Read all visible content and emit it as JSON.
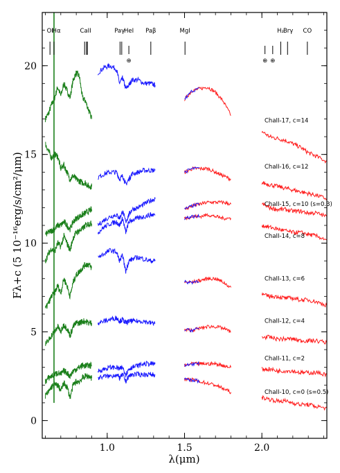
{
  "chart_data": {
    "type": "line",
    "title": "",
    "xlabel": "λ(μm)",
    "ylabel": "Fλ+c (5 10⁻¹⁶erg/s/cm²/μm)",
    "xlim": [
      0.58,
      2.42
    ],
    "ylim": [
      -1.0,
      23.0
    ],
    "x_ticks": [
      1.0,
      1.5,
      2.0
    ],
    "x_tick_labels": [
      "1.0",
      "1.5",
      "2.0"
    ],
    "y_ticks": [
      0,
      5,
      10,
      15,
      20
    ],
    "y_tick_labels": [
      "0",
      "5",
      "10",
      "15",
      "20"
    ],
    "grid": false,
    "band_colors": {
      "optical": "#1a7f1a",
      "nir_short": "#1a1aff",
      "nir_long": "#ff1a1a"
    },
    "line_markers": [
      {
        "label": "OI",
        "x": 0.63,
        "earth": false
      },
      {
        "label": "Hα",
        "x": 0.656,
        "earth": false
      },
      {
        "label": "CaII",
        "x": 0.854,
        "earth": false
      },
      {
        "label": "CaII",
        "x": 0.866,
        "earth": false
      },
      {
        "label": "CaII",
        "x": 0.872,
        "earth": false
      },
      {
        "label": "Paγ",
        "x": 1.094,
        "earth": false
      },
      {
        "label": "HeI",
        "x": 1.083,
        "earth": false
      },
      {
        "label": "Paβ",
        "x": 1.282,
        "earth": false
      },
      {
        "label": "MgI",
        "x": 1.503,
        "earth": false
      },
      {
        "label": "H₂",
        "x": 2.122,
        "earth": false
      },
      {
        "label": "Brγ",
        "x": 2.166,
        "earth": false
      },
      {
        "label": "CO",
        "x": 2.294,
        "earth": false
      },
      {
        "label": "",
        "x": 1.14,
        "earth": true
      },
      {
        "label": "",
        "x": 2.02,
        "earth": true
      },
      {
        "label": "",
        "x": 2.07,
        "earth": true
      }
    ],
    "line_marker_labels": [
      {
        "text": "OI",
        "x": 0.63
      },
      {
        "text": "Hα",
        "x": 0.672
      },
      {
        "text": "CaII",
        "x": 0.86
      },
      {
        "text": "Paγ",
        "x": 1.08
      },
      {
        "text": "HeI",
        "x": 1.14
      },
      {
        "text": "Paβ",
        "x": 1.282
      },
      {
        "text": "MgI",
        "x": 1.503
      },
      {
        "text": "H₂",
        "x": 2.12
      },
      {
        "text": "Brγ",
        "x": 2.17
      },
      {
        "text": "CO",
        "x": 2.294
      }
    ],
    "earth_symbol": "⊕",
    "series": [
      {
        "name": "ChaII-17, c=14",
        "label_y": 16.8,
        "optical_x": [
          0.6,
          0.62,
          0.64,
          0.66,
          0.68,
          0.7,
          0.72,
          0.74,
          0.76,
          0.78,
          0.8,
          0.82,
          0.84,
          0.86,
          0.88,
          0.9
        ],
        "optical_y": [
          17.0,
          17.3,
          17.8,
          18.2,
          18.8,
          18.3,
          19.0,
          18.6,
          18.2,
          19.2,
          19.6,
          19.4,
          18.2,
          18.0,
          17.5,
          17.0
        ],
        "j_x": [
          0.94,
          0.98,
          1.02,
          1.06,
          1.08,
          1.1,
          1.12,
          1.14,
          1.16,
          1.2,
          1.24,
          1.28,
          1.31
        ],
        "j_y": [
          19.6,
          19.9,
          20.0,
          19.8,
          19.0,
          19.3,
          18.7,
          18.9,
          19.2,
          19.2,
          19.0,
          19.0,
          18.9
        ],
        "h_x": [
          1.5,
          1.55,
          1.6,
          1.65,
          1.7,
          1.75,
          1.8
        ],
        "h_y": [
          18.1,
          18.6,
          18.7,
          18.8,
          18.5,
          18.0,
          17.2
        ],
        "k_x": [
          2.0,
          2.05,
          2.1,
          2.15,
          2.2,
          2.25,
          2.3,
          2.35,
          2.42
        ],
        "k_y": [
          16.3,
          16.0,
          15.9,
          15.8,
          15.6,
          15.4,
          15.1,
          14.9,
          14.6
        ]
      },
      {
        "name": "ChaII-16, c=12",
        "label_y": 14.2,
        "optical_x": [
          0.6,
          0.62,
          0.64,
          0.66,
          0.68,
          0.7,
          0.72,
          0.74,
          0.76,
          0.78,
          0.8,
          0.82,
          0.84,
          0.86,
          0.88,
          0.9
        ],
        "optical_y": [
          15.6,
          15.2,
          14.8,
          15.0,
          14.9,
          14.2,
          14.4,
          14.0,
          13.6,
          13.8,
          13.6,
          13.5,
          13.4,
          13.4,
          13.2,
          13.2
        ],
        "j_x": [
          0.94,
          0.98,
          1.02,
          1.06,
          1.08,
          1.1,
          1.12,
          1.14,
          1.16,
          1.2,
          1.24,
          1.28,
          1.31
        ],
        "j_y": [
          13.7,
          13.9,
          14.0,
          14.0,
          13.6,
          13.8,
          13.3,
          13.6,
          13.9,
          14.0,
          14.1,
          14.1,
          14.1
        ],
        "h_x": [
          1.5,
          1.55,
          1.6,
          1.65,
          1.7,
          1.75,
          1.8
        ],
        "h_y": [
          14.0,
          14.2,
          14.2,
          14.2,
          14.0,
          13.8,
          13.6
        ],
        "k_x": [
          2.0,
          2.05,
          2.1,
          2.15,
          2.2,
          2.25,
          2.3,
          2.35,
          2.42
        ],
        "k_y": [
          13.4,
          13.3,
          13.2,
          13.1,
          13.0,
          12.9,
          12.8,
          12.7,
          12.5
        ]
      },
      {
        "name": "ChaII-15, c=10 (s=0.3)",
        "label_y": 12.1,
        "optical_x": [
          0.6,
          0.62,
          0.64,
          0.66,
          0.68,
          0.7,
          0.72,
          0.74,
          0.76,
          0.78,
          0.8,
          0.82,
          0.84,
          0.86,
          0.88,
          0.9
        ],
        "optical_y": [
          10.5,
          10.6,
          10.7,
          10.8,
          11.0,
          11.0,
          11.2,
          11.0,
          10.8,
          11.2,
          11.4,
          11.5,
          11.6,
          11.7,
          11.8,
          11.9
        ],
        "j_x": [
          0.94,
          0.98,
          1.02,
          1.06,
          1.08,
          1.1,
          1.12,
          1.14,
          1.16,
          1.2,
          1.24,
          1.28,
          1.31
        ],
        "j_y": [
          11.0,
          11.3,
          11.5,
          11.6,
          11.4,
          11.8,
          11.2,
          11.6,
          11.9,
          12.0,
          12.2,
          12.4,
          12.5
        ],
        "h_x": [
          1.5,
          1.55,
          1.6,
          1.65,
          1.7,
          1.75,
          1.8
        ],
        "h_y": [
          11.9,
          12.1,
          12.2,
          12.3,
          12.3,
          12.3,
          12.2
        ],
        "k_x": [
          2.0,
          2.05,
          2.1,
          2.15,
          2.2,
          2.25,
          2.3,
          2.35,
          2.42
        ],
        "k_y": [
          12.2,
          12.0,
          11.9,
          11.9,
          11.8,
          11.8,
          11.7,
          11.7,
          11.5
        ]
      },
      {
        "name": "ChaII-14, c=8",
        "label_y": 10.3,
        "optical_x": [
          0.6,
          0.62,
          0.64,
          0.66,
          0.68,
          0.7,
          0.72,
          0.74,
          0.76,
          0.78,
          0.8,
          0.82,
          0.84,
          0.86,
          0.88,
          0.9
        ],
        "optical_y": [
          9.0,
          9.4,
          9.7,
          9.5,
          10.0,
          9.8,
          10.4,
          10.0,
          9.6,
          10.3,
          10.6,
          10.7,
          10.8,
          11.0,
          11.1,
          11.1
        ],
        "j_x": [
          0.94,
          0.98,
          1.02,
          1.06,
          1.08,
          1.1,
          1.12,
          1.14,
          1.16,
          1.2,
          1.24,
          1.28,
          1.31
        ],
        "j_y": [
          10.6,
          10.9,
          11.1,
          11.2,
          11.0,
          11.4,
          10.6,
          11.2,
          11.3,
          11.4,
          11.5,
          11.6,
          11.6
        ],
        "h_x": [
          1.5,
          1.55,
          1.6,
          1.65,
          1.7,
          1.75,
          1.8
        ],
        "h_y": [
          11.4,
          11.5,
          11.5,
          11.6,
          11.5,
          11.4,
          11.4
        ],
        "k_x": [
          2.0,
          2.05,
          2.1,
          2.15,
          2.2,
          2.25,
          2.3,
          2.35,
          2.42
        ],
        "k_y": [
          11.0,
          10.9,
          10.8,
          10.7,
          10.6,
          10.6,
          10.5,
          10.4,
          10.2
        ]
      },
      {
        "name": "ChaII-13, c=6",
        "label_y": 7.9,
        "optical_x": [
          0.6,
          0.62,
          0.64,
          0.66,
          0.68,
          0.7,
          0.72,
          0.74,
          0.76,
          0.78,
          0.8,
          0.82,
          0.84,
          0.86,
          0.88,
          0.9
        ],
        "optical_y": [
          6.3,
          6.6,
          7.0,
          7.2,
          7.6,
          7.2,
          8.0,
          7.6,
          7.0,
          7.8,
          8.2,
          8.4,
          8.6,
          8.8,
          8.8,
          8.6
        ],
        "j_x": [
          0.94,
          0.98,
          1.02,
          1.06,
          1.08,
          1.1,
          1.12,
          1.14,
          1.16,
          1.2,
          1.24,
          1.28,
          1.31
        ],
        "j_y": [
          9.2,
          9.4,
          9.6,
          9.5,
          9.0,
          9.3,
          8.4,
          9.0,
          9.1,
          9.2,
          9.1,
          9.0,
          9.0
        ],
        "h_x": [
          1.5,
          1.55,
          1.6,
          1.65,
          1.7,
          1.75,
          1.8
        ],
        "h_y": [
          7.8,
          7.8,
          7.9,
          8.0,
          8.0,
          7.8,
          7.5
        ],
        "k_x": [
          2.0,
          2.05,
          2.1,
          2.15,
          2.2,
          2.25,
          2.3,
          2.35,
          2.42
        ],
        "k_y": [
          7.1,
          7.0,
          7.0,
          6.9,
          6.9,
          6.8,
          6.8,
          6.7,
          6.5
        ]
      },
      {
        "name": "ChaII-12, c=4",
        "label_y": 5.5,
        "optical_x": [
          0.6,
          0.62,
          0.64,
          0.66,
          0.68,
          0.7,
          0.72,
          0.74,
          0.76,
          0.78,
          0.8,
          0.82,
          0.84,
          0.86,
          0.88,
          0.9
        ],
        "optical_y": [
          4.3,
          4.5,
          4.8,
          5.0,
          5.3,
          5.0,
          5.4,
          5.2,
          4.8,
          5.3,
          5.5,
          5.5,
          5.6,
          5.6,
          5.5,
          5.5
        ],
        "j_x": [
          0.94,
          0.98,
          1.02,
          1.06,
          1.08,
          1.1,
          1.12,
          1.14,
          1.16,
          1.2,
          1.24,
          1.28,
          1.31
        ],
        "j_y": [
          5.5,
          5.6,
          5.7,
          5.8,
          5.6,
          5.7,
          5.5,
          5.6,
          5.6,
          5.6,
          5.6,
          5.5,
          5.5
        ],
        "h_x": [
          1.5,
          1.55,
          1.6,
          1.65,
          1.7,
          1.75,
          1.8
        ],
        "h_y": [
          5.1,
          5.1,
          5.2,
          5.3,
          5.3,
          5.2,
          5.0
        ],
        "k_x": [
          2.0,
          2.05,
          2.1,
          2.15,
          2.2,
          2.25,
          2.3,
          2.35,
          2.42
        ],
        "k_y": [
          4.7,
          4.7,
          4.6,
          4.6,
          4.6,
          4.5,
          4.5,
          4.5,
          4.4
        ]
      },
      {
        "name": "ChaII-11, c=2",
        "label_y": 3.4,
        "optical_x": [
          0.6,
          0.62,
          0.64,
          0.66,
          0.68,
          0.7,
          0.72,
          0.74,
          0.76,
          0.78,
          0.8,
          0.82,
          0.84,
          0.86,
          0.88,
          0.9
        ],
        "optical_y": [
          2.2,
          2.4,
          2.5,
          2.6,
          2.7,
          2.6,
          2.8,
          2.7,
          2.5,
          2.8,
          2.9,
          3.0,
          3.1,
          3.1,
          3.1,
          3.1
        ],
        "j_x": [
          0.94,
          0.98,
          1.02,
          1.06,
          1.08,
          1.1,
          1.12,
          1.14,
          1.16,
          1.2,
          1.24,
          1.28,
          1.31
        ],
        "j_y": [
          2.8,
          2.9,
          3.0,
          3.0,
          2.9,
          3.0,
          2.6,
          2.9,
          3.0,
          3.1,
          3.2,
          3.2,
          3.2
        ],
        "h_x": [
          1.5,
          1.55,
          1.6,
          1.65,
          1.7,
          1.75,
          1.8
        ],
        "h_y": [
          3.1,
          3.2,
          3.2,
          3.2,
          3.2,
          3.1,
          3.0
        ],
        "k_x": [
          2.0,
          2.05,
          2.1,
          2.15,
          2.2,
          2.25,
          2.3,
          2.35,
          2.42
        ],
        "k_y": [
          2.9,
          2.9,
          2.8,
          2.8,
          2.8,
          2.7,
          2.7,
          2.7,
          2.6
        ]
      },
      {
        "name": "ChaII-10, c=0 (s=0.5)",
        "label_y": 1.5,
        "optical_x": [
          0.6,
          0.62,
          0.64,
          0.66,
          0.68,
          0.7,
          0.72,
          0.74,
          0.76,
          0.78,
          0.8,
          0.82,
          0.84,
          0.86,
          0.88,
          0.9
        ],
        "optical_y": [
          1.4,
          1.6,
          1.9,
          2.0,
          2.0,
          1.7,
          2.1,
          1.9,
          1.3,
          2.0,
          2.2,
          2.2,
          2.4,
          2.5,
          2.5,
          2.4
        ],
        "j_x": [
          0.94,
          0.98,
          1.02,
          1.06,
          1.08,
          1.1,
          1.12,
          1.14,
          1.16,
          1.2,
          1.24,
          1.28,
          1.31
        ],
        "j_y": [
          2.4,
          2.5,
          2.5,
          2.6,
          2.4,
          2.6,
          2.2,
          2.5,
          2.6,
          2.6,
          2.6,
          2.6,
          2.6
        ],
        "h_x": [
          1.5,
          1.55,
          1.6,
          1.65,
          1.7,
          1.75,
          1.8
        ],
        "h_y": [
          2.3,
          2.3,
          2.2,
          2.1,
          2.0,
          1.8,
          1.6
        ],
        "k_x": [
          2.0,
          2.05,
          2.1,
          2.15,
          2.2,
          2.25,
          2.3,
          2.35,
          2.42
        ],
        "k_y": [
          1.3,
          1.2,
          1.1,
          1.1,
          1.0,
          0.9,
          0.9,
          0.8,
          0.7
        ]
      }
    ]
  }
}
